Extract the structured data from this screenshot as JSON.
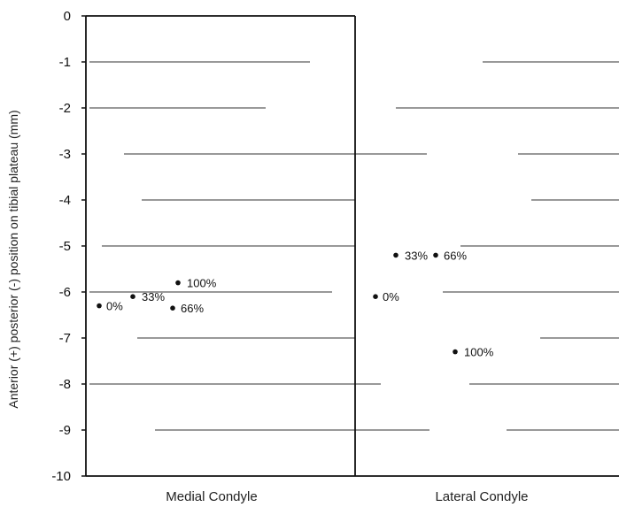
{
  "chart_data": {
    "type": "scatter",
    "title": "",
    "ylabel": "Anterior (+) posterior (-) position on tibial plateau (mm)",
    "xlabel": "",
    "ylim": [
      -10,
      0
    ],
    "yticks": [
      0,
      -1,
      -2,
      -3,
      -4,
      -5,
      -6,
      -7,
      -8,
      -9,
      -10
    ],
    "ytick_labels": [
      "0",
      "-1",
      "-2",
      "-3",
      "-4",
      "-5",
      "-6",
      "-7",
      "-8",
      "-9",
      "-10"
    ],
    "grid": true,
    "categories": [
      "Medial Condyle",
      "Lateral Condyle"
    ],
    "panels": [
      {
        "category": "Medial Condyle",
        "points": [
          {
            "label": "0%",
            "y": -6.3
          },
          {
            "label": "33%",
            "y": -6.1
          },
          {
            "label": "66%",
            "y": -6.35
          },
          {
            "label": "100%",
            "y": -5.8
          }
        ]
      },
      {
        "category": "Lateral Condyle",
        "points": [
          {
            "label": "0%",
            "y": -6.1
          },
          {
            "label": "33%",
            "y": -5.2
          },
          {
            "label": "66%",
            "y": -5.2
          },
          {
            "label": "100%",
            "y": -7.3
          }
        ]
      }
    ]
  }
}
